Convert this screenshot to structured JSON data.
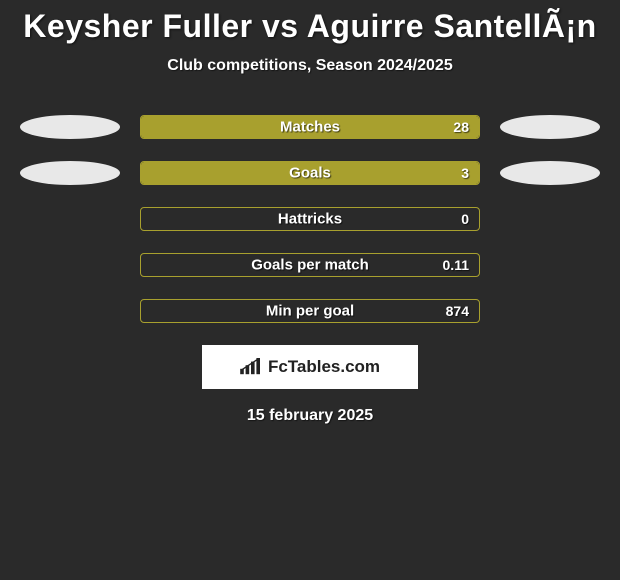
{
  "title": "Keysher Fuller vs Aguirre SantellÃ¡n",
  "subtitle": "Club competitions, Season 2024/2025",
  "background_color": "#2a2a2a",
  "bar_border_color": "#a8a02e",
  "bar_fill_color": "#a8a02e",
  "pill_color": "#e8e8e8",
  "text_color": "#ffffff",
  "title_fontsize": 32,
  "subtitle_fontsize": 16,
  "label_fontsize": 15,
  "value_fontsize": 14,
  "rows": [
    {
      "label": "Matches",
      "value": "28",
      "fill_pct": 100,
      "left_pill": true,
      "right_pill": true
    },
    {
      "label": "Goals",
      "value": "3",
      "fill_pct": 100,
      "left_pill": true,
      "right_pill": true
    },
    {
      "label": "Hattricks",
      "value": "0",
      "fill_pct": 0,
      "left_pill": false,
      "right_pill": false
    },
    {
      "label": "Goals per match",
      "value": "0.11",
      "fill_pct": 0,
      "left_pill": false,
      "right_pill": false
    },
    {
      "label": "Min per goal",
      "value": "874",
      "fill_pct": 0,
      "left_pill": false,
      "right_pill": false
    }
  ],
  "logo_text": "FcTables.com",
  "date": "15 february 2025"
}
